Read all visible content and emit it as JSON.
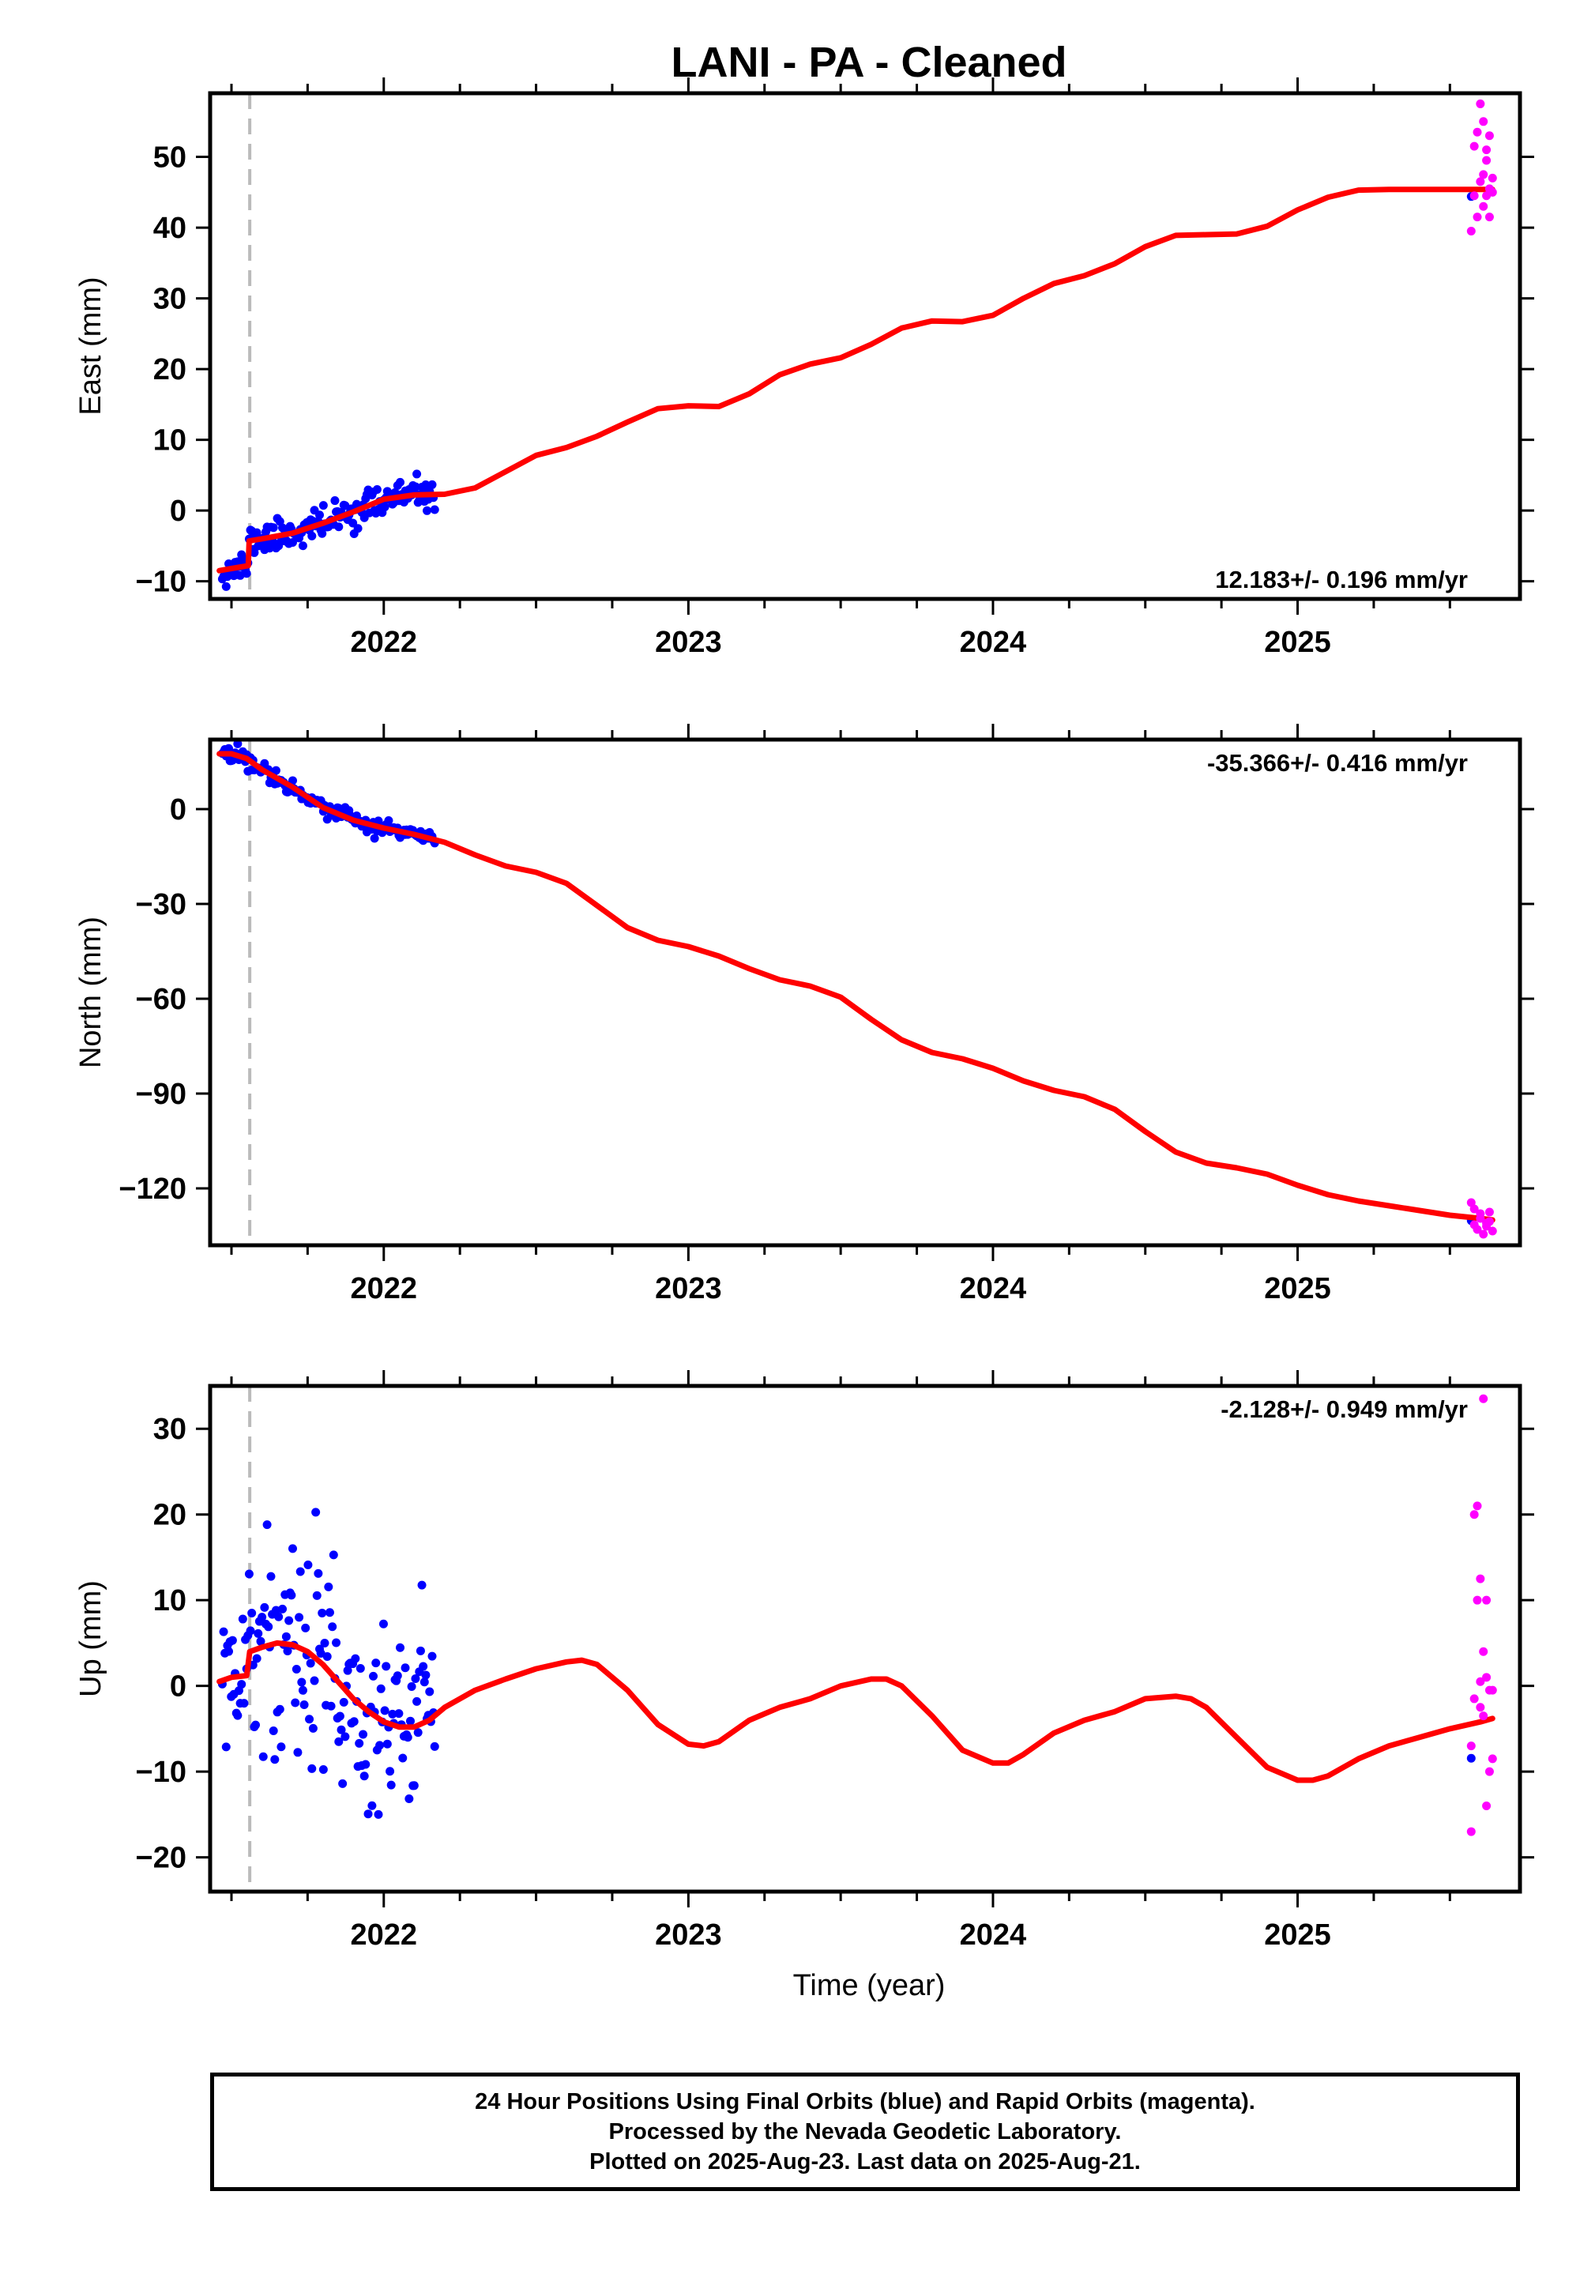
{
  "title": "LANI  - PA - Cleaned",
  "xlabel": "Time (year)",
  "colors": {
    "final_orbits": "#0000ff",
    "rapid_orbits": "#ff00ff",
    "model": "#ff0000",
    "event_line": "#bbbbbb",
    "frame": "#000000"
  },
  "chart_data": [
    {
      "type": "scatter",
      "name": "east",
      "ylabel": "East (mm)",
      "rate_text": "12.183+/- 0.196 mm/yr",
      "xlim": [
        2021.43,
        2025.73
      ],
      "ylim": [
        -12.5,
        59
      ],
      "xticks": [
        2022,
        2023,
        2024,
        2025
      ],
      "yticks": [
        -10,
        0,
        10,
        20,
        30,
        40,
        50
      ],
      "ytick_labels": [
        "−10",
        "0",
        "10",
        "20",
        "30",
        "40",
        "50"
      ],
      "event_line_x": 2021.56,
      "model": {
        "x": [
          2021.46,
          2021.5,
          2021.555,
          2021.558,
          2021.6,
          2021.7,
          2021.8,
          2021.9,
          2022.0,
          2022.1,
          2022.2,
          2022.3,
          2022.4,
          2022.5,
          2022.6,
          2022.7,
          2022.8,
          2022.9,
          2023.0,
          2023.1,
          2023.2,
          2023.3,
          2023.4,
          2023.5,
          2023.6,
          2023.7,
          2023.8,
          2023.9,
          2024.0,
          2024.1,
          2024.2,
          2024.3,
          2024.4,
          2024.5,
          2024.6,
          2024.7,
          2024.8,
          2024.9,
          2025.0,
          2025.1,
          2025.2,
          2025.3,
          2025.4,
          2025.5,
          2025.6,
          2025.64
        ],
        "y": [
          -8.5,
          -8.2,
          -7.8,
          -4.3,
          -4.0,
          -3.2,
          -1.8,
          -0.2,
          1.6,
          2.2,
          2.3,
          3.2,
          5.5,
          7.8,
          8.9,
          10.5,
          12.5,
          14.4,
          14.8,
          14.7,
          16.5,
          19.2,
          20.7,
          21.6,
          23.5,
          25.8,
          26.8,
          26.7,
          27.6,
          30.0,
          32.1,
          33.2,
          34.9,
          37.3,
          38.9,
          39.0,
          39.1,
          40.2,
          42.5,
          44.3,
          45.3,
          45.4,
          45.4,
          45.4,
          45.4,
          45.4
        ]
      },
      "rapid_points": {
        "x": [
          2025.57,
          2025.58,
          2025.58,
          2025.59,
          2025.59,
          2025.6,
          2025.6,
          2025.61,
          2025.61,
          2025.61,
          2025.62,
          2025.62,
          2025.62,
          2025.63,
          2025.63,
          2025.63,
          2025.64,
          2025.64
        ],
        "y": [
          39.5,
          44.5,
          51.5,
          41.5,
          53.5,
          46.5,
          57.5,
          47.5,
          55.0,
          43.0,
          49.5,
          44.5,
          51.0,
          45.5,
          41.5,
          53.0,
          45.0,
          47.0
        ]
      }
    },
    {
      "type": "scatter",
      "name": "north",
      "ylabel": "North (mm)",
      "rate_text": "-35.366+/- 0.416 mm/yr",
      "xlim": [
        2021.43,
        2025.73
      ],
      "ylim": [
        -138,
        22
      ],
      "xticks": [
        2022,
        2023,
        2024,
        2025
      ],
      "yticks": [
        -120,
        -90,
        -60,
        -30,
        0
      ],
      "ytick_labels": [
        "−120",
        "−90",
        "−60",
        "−30",
        "0"
      ],
      "event_line_x": 2021.56,
      "model": {
        "x": [
          2021.46,
          2021.5,
          2021.55,
          2021.6,
          2021.7,
          2021.8,
          2021.9,
          2022.0,
          2022.1,
          2022.2,
          2022.3,
          2022.4,
          2022.5,
          2022.6,
          2022.7,
          2022.8,
          2022.9,
          2023.0,
          2023.1,
          2023.2,
          2023.3,
          2023.4,
          2023.5,
          2023.6,
          2023.7,
          2023.8,
          2023.9,
          2024.0,
          2024.1,
          2024.2,
          2024.3,
          2024.4,
          2024.5,
          2024.6,
          2024.7,
          2024.8,
          2024.9,
          2025.0,
          2025.1,
          2025.2,
          2025.3,
          2025.4,
          2025.5,
          2025.6,
          2025.64
        ],
        "y": [
          17.5,
          17.5,
          16.0,
          12.5,
          7.0,
          0.5,
          -3.5,
          -6.0,
          -8.0,
          -10.5,
          -14.5,
          -18.0,
          -20.0,
          -23.5,
          -30.5,
          -37.5,
          -41.5,
          -43.5,
          -46.5,
          -50.5,
          -54.0,
          -56.0,
          -59.5,
          -66.5,
          -73.0,
          -77.0,
          -79.0,
          -82.0,
          -86.0,
          -89.0,
          -91.0,
          -95.0,
          -102.0,
          -108.5,
          -112.0,
          -113.5,
          -115.5,
          -119.0,
          -122.0,
          -124.0,
          -125.5,
          -127.0,
          -128.5,
          -129.5,
          -130.0
        ]
      },
      "rapid_points": {
        "x": [
          2025.57,
          2025.58,
          2025.59,
          2025.6,
          2025.61,
          2025.62,
          2025.63,
          2025.64,
          2025.58,
          2025.6,
          2025.62,
          2025.63
        ],
        "y": [
          -124.5,
          -131.5,
          -133.0,
          -129.5,
          -134.5,
          -131.0,
          -127.5,
          -133.5,
          -126.5,
          -128.0,
          -132.0,
          -130.5
        ]
      }
    },
    {
      "type": "scatter",
      "name": "up",
      "ylabel": "Up (mm)",
      "rate_text": "-2.128+/- 0.949 mm/yr",
      "xlim": [
        2021.43,
        2025.73
      ],
      "ylim": [
        -24,
        35
      ],
      "xticks": [
        2022,
        2023,
        2024,
        2025
      ],
      "yticks": [
        -20,
        -10,
        0,
        10,
        20,
        30
      ],
      "ytick_labels": [
        "−20",
        "−10",
        "0",
        "10",
        "20",
        "30"
      ],
      "event_line_x": 2021.56,
      "model": {
        "x": [
          2021.46,
          2021.5,
          2021.55,
          2021.56,
          2021.6,
          2021.65,
          2021.7,
          2021.75,
          2021.8,
          2021.85,
          2021.9,
          2021.95,
          2022.0,
          2022.05,
          2022.1,
          2022.15,
          2022.2,
          2022.3,
          2022.4,
          2022.5,
          2022.6,
          2022.65,
          2022.7,
          2022.8,
          2022.9,
          2023.0,
          2023.05,
          2023.1,
          2023.2,
          2023.3,
          2023.4,
          2023.5,
          2023.6,
          2023.65,
          2023.7,
          2023.8,
          2023.9,
          2024.0,
          2024.05,
          2024.1,
          2024.2,
          2024.3,
          2024.4,
          2024.5,
          2024.6,
          2024.65,
          2024.7,
          2024.8,
          2024.9,
          2025.0,
          2025.05,
          2025.1,
          2025.2,
          2025.3,
          2025.4,
          2025.5,
          2025.6,
          2025.64
        ],
        "y": [
          0.5,
          1.0,
          1.2,
          4.0,
          4.5,
          5.0,
          4.8,
          4.0,
          2.5,
          0.5,
          -1.5,
          -3.0,
          -4.2,
          -4.8,
          -4.8,
          -4.0,
          -2.5,
          -0.5,
          0.8,
          2.0,
          2.8,
          3.0,
          2.5,
          -0.5,
          -4.5,
          -6.8,
          -7.0,
          -6.5,
          -4.0,
          -2.5,
          -1.5,
          0.0,
          0.8,
          0.8,
          0.0,
          -3.5,
          -7.5,
          -9.0,
          -9.0,
          -8.0,
          -5.5,
          -4.0,
          -3.0,
          -1.5,
          -1.2,
          -1.5,
          -2.5,
          -6.0,
          -9.5,
          -11.0,
          -11.0,
          -10.5,
          -8.5,
          -7.0,
          -6.0,
          -5.0,
          -4.2,
          -3.8
        ]
      },
      "rapid_points": {
        "x": [
          2025.57,
          2025.58,
          2025.58,
          2025.59,
          2025.59,
          2025.6,
          2025.6,
          2025.61,
          2025.61,
          2025.61,
          2025.62,
          2025.62,
          2025.62,
          2025.63,
          2025.63,
          2025.64,
          2025.64,
          2025.57,
          2025.6
        ],
        "y": [
          -17.0,
          20.0,
          -1.5,
          21.0,
          10.0,
          12.5,
          0.5,
          33.5,
          4.0,
          -3.5,
          10.0,
          -14.0,
          1.0,
          -0.5,
          -10.0,
          -8.5,
          -0.5,
          -7.0,
          -2.5
        ]
      }
    }
  ],
  "footer": {
    "line1": "24 Hour Positions Using Final Orbits (blue) and Rapid Orbits (magenta).",
    "line2": "Processed by the Nevada Geodetic Laboratory.",
    "line3": "Plotted on 2025-Aug-23. Last data on 2025-Aug-21."
  }
}
